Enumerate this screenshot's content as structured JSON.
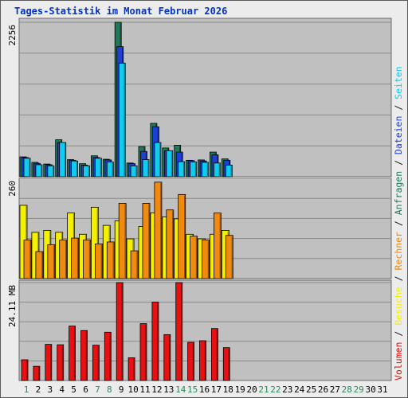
{
  "title": "Tages-Statistik im Monat Februar 2026",
  "colors": {
    "panel_bg": "#c0c0c0",
    "grid": "#8a8a8a",
    "anfragen": "#1e7a5a",
    "dateien": "#1d3fd6",
    "seiten": "#10ccf0",
    "besuche": "#f5f000",
    "rechner": "#f08a10",
    "volumen": "#e81010",
    "weekday_label": "#000000",
    "weekend_label": "#2a8a5a"
  },
  "chart_data": [
    {
      "type": "bar",
      "name": "top",
      "ymax_label": "2256",
      "ymax": 2256,
      "legend": [
        {
          "text": "Anfragen",
          "color": "#1e7a5a"
        },
        {
          "text": "Dateien",
          "color": "#1d3fd6"
        },
        {
          "text": "Seiten",
          "color": "#10ccf0"
        }
      ],
      "series": [
        {
          "name": "Anfragen",
          "color": "#1e7a5a",
          "values": [
            290,
            210,
            185,
            540,
            250,
            190,
            305,
            255,
            2256,
            200,
            440,
            780,
            420,
            460,
            240,
            245,
            360,
            260
          ]
        },
        {
          "name": "Dateien",
          "color": "#1d3fd6",
          "values": [
            280,
            195,
            175,
            500,
            240,
            170,
            280,
            245,
            1900,
            190,
            370,
            730,
            380,
            360,
            235,
            230,
            320,
            240
          ]
        },
        {
          "name": "Seiten",
          "color": "#10ccf0",
          "values": [
            270,
            175,
            160,
            500,
            230,
            160,
            270,
            215,
            1660,
            160,
            250,
            500,
            380,
            220,
            215,
            210,
            200,
            170
          ]
        }
      ]
    },
    {
      "type": "bar",
      "name": "middle",
      "ymax_label": "260",
      "ymax": 260,
      "legend": [
        {
          "text": "Besuche",
          "color": "#f5f000"
        },
        {
          "text": "Rechner",
          "color": "#f08a10"
        }
      ],
      "series": [
        {
          "name": "Besuche",
          "color": "#f5f000",
          "values": [
            190,
            120,
            125,
            120,
            170,
            115,
            185,
            138,
            150,
            103,
            135,
            170,
            160,
            155,
            115,
            103,
            115,
            125
          ]
        },
        {
          "name": "Rechner",
          "color": "#f08a10",
          "values": [
            100,
            70,
            88,
            100,
            105,
            100,
            90,
            95,
            195,
            72,
            195,
            250,
            178,
            218,
            110,
            100,
            170,
            112
          ]
        }
      ]
    },
    {
      "type": "bar",
      "name": "bottom",
      "ymax_label": "24.11 MB",
      "ymax": 24.11,
      "legend": [
        {
          "text": "Volumen",
          "color": "#e81010"
        }
      ],
      "series": [
        {
          "name": "Volumen",
          "color": "#e81010",
          "values": [
            5.1,
            3.5,
            8.9,
            8.8,
            13.4,
            12.3,
            8.7,
            11.9,
            24.11,
            5.6,
            14.0,
            19.3,
            11.3,
            24.11,
            9.4,
            9.8,
            12.8,
            8.1
          ]
        }
      ]
    }
  ],
  "x_axis": {
    "days": [
      "1",
      "2",
      "3",
      "4",
      "5",
      "6",
      "7",
      "8",
      "9",
      "10",
      "11",
      "12",
      "13",
      "14",
      "15",
      "16",
      "17",
      "18",
      "19",
      "20",
      "21",
      "22",
      "23",
      "24",
      "25",
      "26",
      "27",
      "28",
      "29",
      "30",
      "31"
    ],
    "weekend_days": [
      "1",
      "7",
      "8",
      "14",
      "15",
      "21",
      "22",
      "28",
      "29"
    ]
  },
  "legend_separator": "/"
}
